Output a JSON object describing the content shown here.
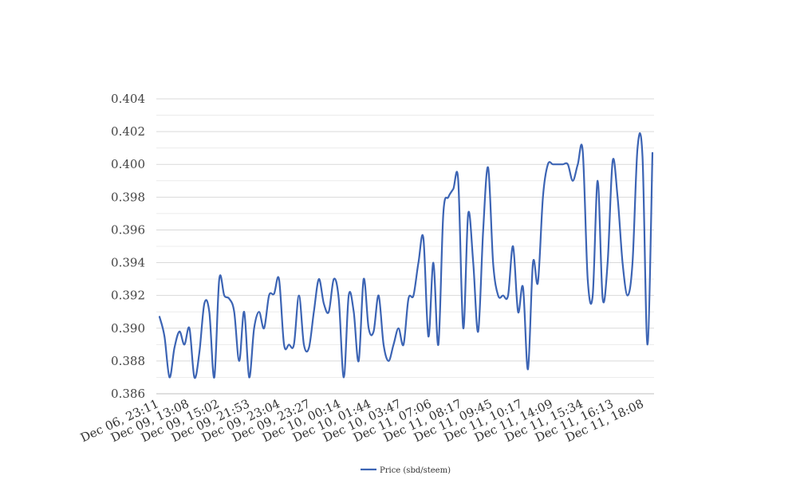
{
  "chart_data": {
    "type": "line",
    "title": "",
    "xlabel": "",
    "ylabel": "",
    "ylim": [
      0.386,
      0.404
    ],
    "yticks": [
      "0.386",
      "0.388",
      "0.390",
      "0.392",
      "0.394",
      "0.396",
      "0.398",
      "0.400",
      "0.402",
      "0.404"
    ],
    "xtick_labels": [
      "Dec 06, 23:11",
      "Dec 09, 13:08",
      "Dec 09, 15:02",
      "Dec 09, 21:53",
      "Dec 09, 23:04",
      "Dec 09, 23:27",
      "Dec 10, 00:14",
      "Dec 10, 01:44",
      "Dec 10, 03:47",
      "Dec 11, 07:06",
      "Dec 11, 08:17",
      "Dec 11, 09:45",
      "Dec 11, 10:17",
      "Dec 11, 14:09",
      "Dec 11, 15:34",
      "Dec 11, 16:13",
      "Dec 11, 18:08"
    ],
    "grid": true,
    "legend_position": "bottom-center",
    "colors": {
      "series": "#3c64b4",
      "grid": "#d9d9d9",
      "axis": "#bfbfbf"
    },
    "series": [
      {
        "name": "Price (sbd/steem)",
        "values": [
          0.3907,
          0.3895,
          0.387,
          0.3888,
          0.3898,
          0.389,
          0.39,
          0.387,
          0.3885,
          0.3915,
          0.391,
          0.387,
          0.393,
          0.392,
          0.3918,
          0.391,
          0.388,
          0.391,
          0.387,
          0.39,
          0.391,
          0.39,
          0.392,
          0.3921,
          0.393,
          0.389,
          0.389,
          0.389,
          0.392,
          0.389,
          0.3888,
          0.391,
          0.393,
          0.3915,
          0.391,
          0.393,
          0.3918,
          0.387,
          0.392,
          0.391,
          0.388,
          0.393,
          0.39,
          0.3898,
          0.392,
          0.389,
          0.388,
          0.389,
          0.39,
          0.389,
          0.3918,
          0.392,
          0.394,
          0.3955,
          0.3895,
          0.394,
          0.389,
          0.397,
          0.398,
          0.3985,
          0.399,
          0.39,
          0.397,
          0.394,
          0.3898,
          0.396,
          0.3998,
          0.394,
          0.392,
          0.392,
          0.392,
          0.395,
          0.391,
          0.3925,
          0.3875,
          0.394,
          0.3928,
          0.398,
          0.4,
          0.4,
          0.4,
          0.4,
          0.4,
          0.399,
          0.4,
          0.4008,
          0.393,
          0.392,
          0.399,
          0.3918,
          0.394,
          0.4002,
          0.398,
          0.394,
          0.392,
          0.394,
          0.401,
          0.4005,
          0.389,
          0.4007
        ]
      }
    ]
  }
}
